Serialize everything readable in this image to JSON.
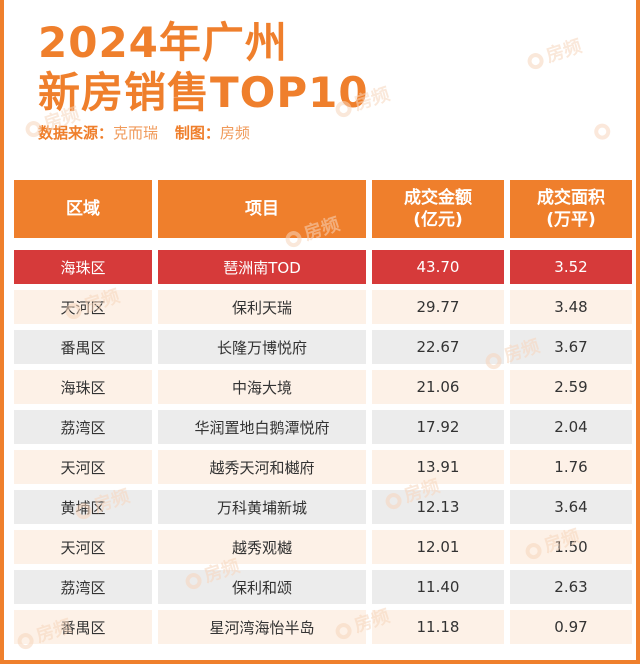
{
  "title_line1": "2024年广州",
  "title_line2": "新房销售TOP10",
  "source_label": "数据来源：",
  "source_value": "克而瑞",
  "made_label": "制图：",
  "made_value": "房频",
  "watermark_text": "房频",
  "table": {
    "headers": {
      "region": "区域",
      "project": "项目",
      "amount": "成交金额\n(亿元)",
      "area": "成交面积\n(万平)"
    },
    "rows": [
      {
        "region": "海珠区",
        "project": "琶洲南TOD",
        "amount": "43.70",
        "area": "3.52"
      },
      {
        "region": "天河区",
        "project": "保利天瑞",
        "amount": "29.77",
        "area": "3.48"
      },
      {
        "region": "番禺区",
        "project": "长隆万博悦府",
        "amount": "22.67",
        "area": "3.67"
      },
      {
        "region": "海珠区",
        "project": "中海大境",
        "amount": "21.06",
        "area": "2.59"
      },
      {
        "region": "荔湾区",
        "project": "华润置地白鹅潭悦府",
        "amount": "17.92",
        "area": "2.04"
      },
      {
        "region": "天河区",
        "project": "越秀天河和樾府",
        "amount": "13.91",
        "area": "1.76"
      },
      {
        "region": "黄埔区",
        "project": "万科黄埔新城",
        "amount": "12.13",
        "area": "3.64"
      },
      {
        "region": "天河区",
        "project": "越秀观樾",
        "amount": "12.01",
        "area": "1.50"
      },
      {
        "region": "荔湾区",
        "project": "保利和颂",
        "amount": "11.40",
        "area": "2.63"
      },
      {
        "region": "番禺区",
        "project": "星河湾海怡半岛",
        "amount": "11.18",
        "area": "0.97"
      }
    ]
  },
  "colors": {
    "accent": "#ef7f2c",
    "highlight": "#d63a3a",
    "row_tint_a": "#fdf1e7",
    "row_tint_b": "#ececec"
  }
}
